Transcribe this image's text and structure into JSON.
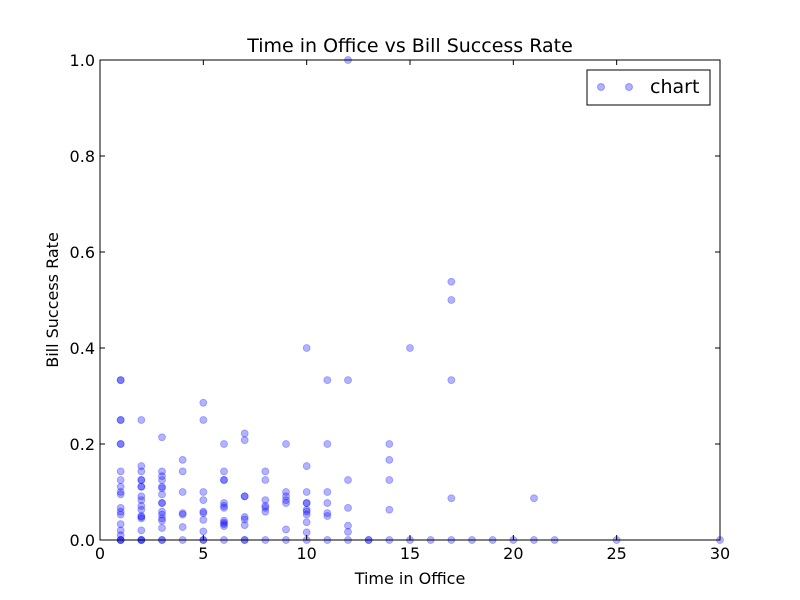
{
  "chart_data": {
    "type": "scatter",
    "title": "Time in Office vs Bill Success Rate",
    "xlabel": "Time in Office",
    "ylabel": "Bill Success Rate",
    "xlim": [
      0,
      30
    ],
    "ylim": [
      0,
      1.0
    ],
    "xticks": [
      0,
      5,
      10,
      15,
      20,
      25,
      30
    ],
    "xtick_labels": [
      "0",
      "5",
      "10",
      "15",
      "20",
      "25",
      "30"
    ],
    "yticks": [
      0.0,
      0.2,
      0.4,
      0.6,
      0.8,
      1.0
    ],
    "ytick_labels": [
      "0.0",
      "0.2",
      "0.4",
      "0.6",
      "0.8",
      "1.0"
    ],
    "grid": false,
    "legend_position": "top-right",
    "marker_color": "#0000ff",
    "marker_alpha": 0.3,
    "series": [
      {
        "name": "chart",
        "points": [
          [
            1,
            0.333
          ],
          [
            1,
            0.333
          ],
          [
            1,
            0.25
          ],
          [
            1,
            0.25
          ],
          [
            1,
            0.2
          ],
          [
            1,
            0.2
          ],
          [
            1,
            0.143
          ],
          [
            1,
            0.125
          ],
          [
            1,
            0.111
          ],
          [
            1,
            0.1
          ],
          [
            1,
            0.095
          ],
          [
            1,
            0.067
          ],
          [
            1,
            0.059
          ],
          [
            1,
            0.053
          ],
          [
            1,
            0.033
          ],
          [
            1,
            0.02
          ],
          [
            1,
            0.01
          ],
          [
            1,
            0.0
          ],
          [
            1,
            0.0
          ],
          [
            1,
            0.0
          ],
          [
            2,
            0.25
          ],
          [
            2,
            0.154
          ],
          [
            2,
            0.143
          ],
          [
            2,
            0.125
          ],
          [
            2,
            0.125
          ],
          [
            2,
            0.111
          ],
          [
            2,
            0.111
          ],
          [
            2,
            0.091
          ],
          [
            2,
            0.083
          ],
          [
            2,
            0.071
          ],
          [
            2,
            0.063
          ],
          [
            2,
            0.05
          ],
          [
            2,
            0.048
          ],
          [
            2,
            0.045
          ],
          [
            2,
            0.02
          ],
          [
            2,
            0.0
          ],
          [
            2,
            0.0
          ],
          [
            2,
            0.0
          ],
          [
            3,
            0.214
          ],
          [
            3,
            0.143
          ],
          [
            3,
            0.133
          ],
          [
            3,
            0.125
          ],
          [
            3,
            0.111
          ],
          [
            3,
            0.108
          ],
          [
            3,
            0.095
          ],
          [
            3,
            0.077
          ],
          [
            3,
            0.077
          ],
          [
            3,
            0.059
          ],
          [
            3,
            0.053
          ],
          [
            3,
            0.045
          ],
          [
            3,
            0.04
          ],
          [
            3,
            0.025
          ],
          [
            3,
            0.0
          ],
          [
            3,
            0.0
          ],
          [
            4,
            0.167
          ],
          [
            4,
            0.143
          ],
          [
            4,
            0.1
          ],
          [
            4,
            0.056
          ],
          [
            4,
            0.053
          ],
          [
            4,
            0.027
          ],
          [
            4,
            0.0
          ],
          [
            5,
            0.286
          ],
          [
            5,
            0.25
          ],
          [
            5,
            0.1
          ],
          [
            5,
            0.083
          ],
          [
            5,
            0.059
          ],
          [
            5,
            0.056
          ],
          [
            5,
            0.042
          ],
          [
            5,
            0.018
          ],
          [
            5,
            0.0
          ],
          [
            5,
            0.0
          ],
          [
            6,
            0.2
          ],
          [
            6,
            0.143
          ],
          [
            6,
            0.125
          ],
          [
            6,
            0.125
          ],
          [
            6,
            0.077
          ],
          [
            6,
            0.071
          ],
          [
            6,
            0.067
          ],
          [
            6,
            0.04
          ],
          [
            6,
            0.036
          ],
          [
            6,
            0.033
          ],
          [
            6,
            0.029
          ],
          [
            6,
            0.0
          ],
          [
            7,
            0.222
          ],
          [
            7,
            0.208
          ],
          [
            7,
            0.091
          ],
          [
            7,
            0.091
          ],
          [
            7,
            0.048
          ],
          [
            7,
            0.043
          ],
          [
            7,
            0.031
          ],
          [
            7,
            0.0
          ],
          [
            7,
            0.0
          ],
          [
            8,
            0.143
          ],
          [
            8,
            0.125
          ],
          [
            8,
            0.083
          ],
          [
            8,
            0.071
          ],
          [
            8,
            0.067
          ],
          [
            8,
            0.059
          ],
          [
            8,
            0.0
          ],
          [
            9,
            0.2
          ],
          [
            9,
            0.1
          ],
          [
            9,
            0.091
          ],
          [
            9,
            0.083
          ],
          [
            9,
            0.077
          ],
          [
            9,
            0.022
          ],
          [
            9,
            0.0
          ],
          [
            10,
            0.4
          ],
          [
            10,
            0.154
          ],
          [
            10,
            0.1
          ],
          [
            10,
            0.077
          ],
          [
            10,
            0.077
          ],
          [
            10,
            0.063
          ],
          [
            10,
            0.059
          ],
          [
            10,
            0.053
          ],
          [
            10,
            0.037
          ],
          [
            10,
            0.016
          ],
          [
            10,
            0.0
          ],
          [
            11,
            0.333
          ],
          [
            11,
            0.2
          ],
          [
            11,
            0.1
          ],
          [
            11,
            0.077
          ],
          [
            11,
            0.056
          ],
          [
            11,
            0.05
          ],
          [
            11,
            0.0
          ],
          [
            12,
            1.0
          ],
          [
            12,
            0.333
          ],
          [
            12,
            0.125
          ],
          [
            12,
            0.067
          ],
          [
            12,
            0.03
          ],
          [
            12,
            0.017
          ],
          [
            12,
            0.0
          ],
          [
            13,
            0.0
          ],
          [
            13,
            0.0
          ],
          [
            14,
            0.2
          ],
          [
            14,
            0.167
          ],
          [
            14,
            0.125
          ],
          [
            14,
            0.063
          ],
          [
            14,
            0.0
          ],
          [
            15,
            0.4
          ],
          [
            15,
            0.0
          ],
          [
            16,
            0.0
          ],
          [
            17,
            0.538
          ],
          [
            17,
            0.5
          ],
          [
            17,
            0.333
          ],
          [
            17,
            0.087
          ],
          [
            17,
            0.0
          ],
          [
            18,
            0.0
          ],
          [
            19,
            0.0
          ],
          [
            20,
            0.0
          ],
          [
            21,
            0.087
          ],
          [
            21,
            0.0
          ],
          [
            22,
            0.0
          ],
          [
            25,
            0.0
          ],
          [
            30,
            0.0
          ]
        ]
      }
    ]
  }
}
